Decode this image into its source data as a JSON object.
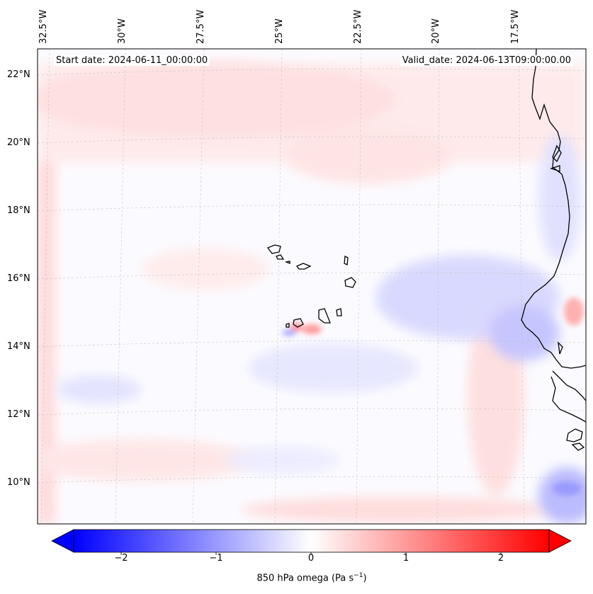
{
  "map": {
    "start_date": "Start date: 2024-06-11_00:00:00",
    "valid_date": "Valid_date: 2024-06-13T09:00:00.00",
    "longitude_labels": [
      "32.5°W",
      "30°W",
      "27.5°W",
      "25°W",
      "22.5°W",
      "20°W",
      "17.5°W"
    ],
    "latitude_labels": [
      "22°N",
      "20°N",
      "18°N",
      "16°N",
      "14°N",
      "12°N",
      "10°N"
    ],
    "region": "Cabo Verde islands and West African coast",
    "gridlines": true
  },
  "colorbar": {
    "label_prefix": "850 hPa omega (Pa s",
    "label_exp": "−1",
    "label_suffix": ")",
    "ticks": [
      "−2",
      "−1",
      "0",
      "1",
      "2"
    ],
    "range": [
      -2.6,
      2.6
    ],
    "colormap": "bwr",
    "extend": "both",
    "colors": {
      "min": "#0000ff",
      "mid": "#ffffff",
      "max": "#ff0000"
    }
  }
}
